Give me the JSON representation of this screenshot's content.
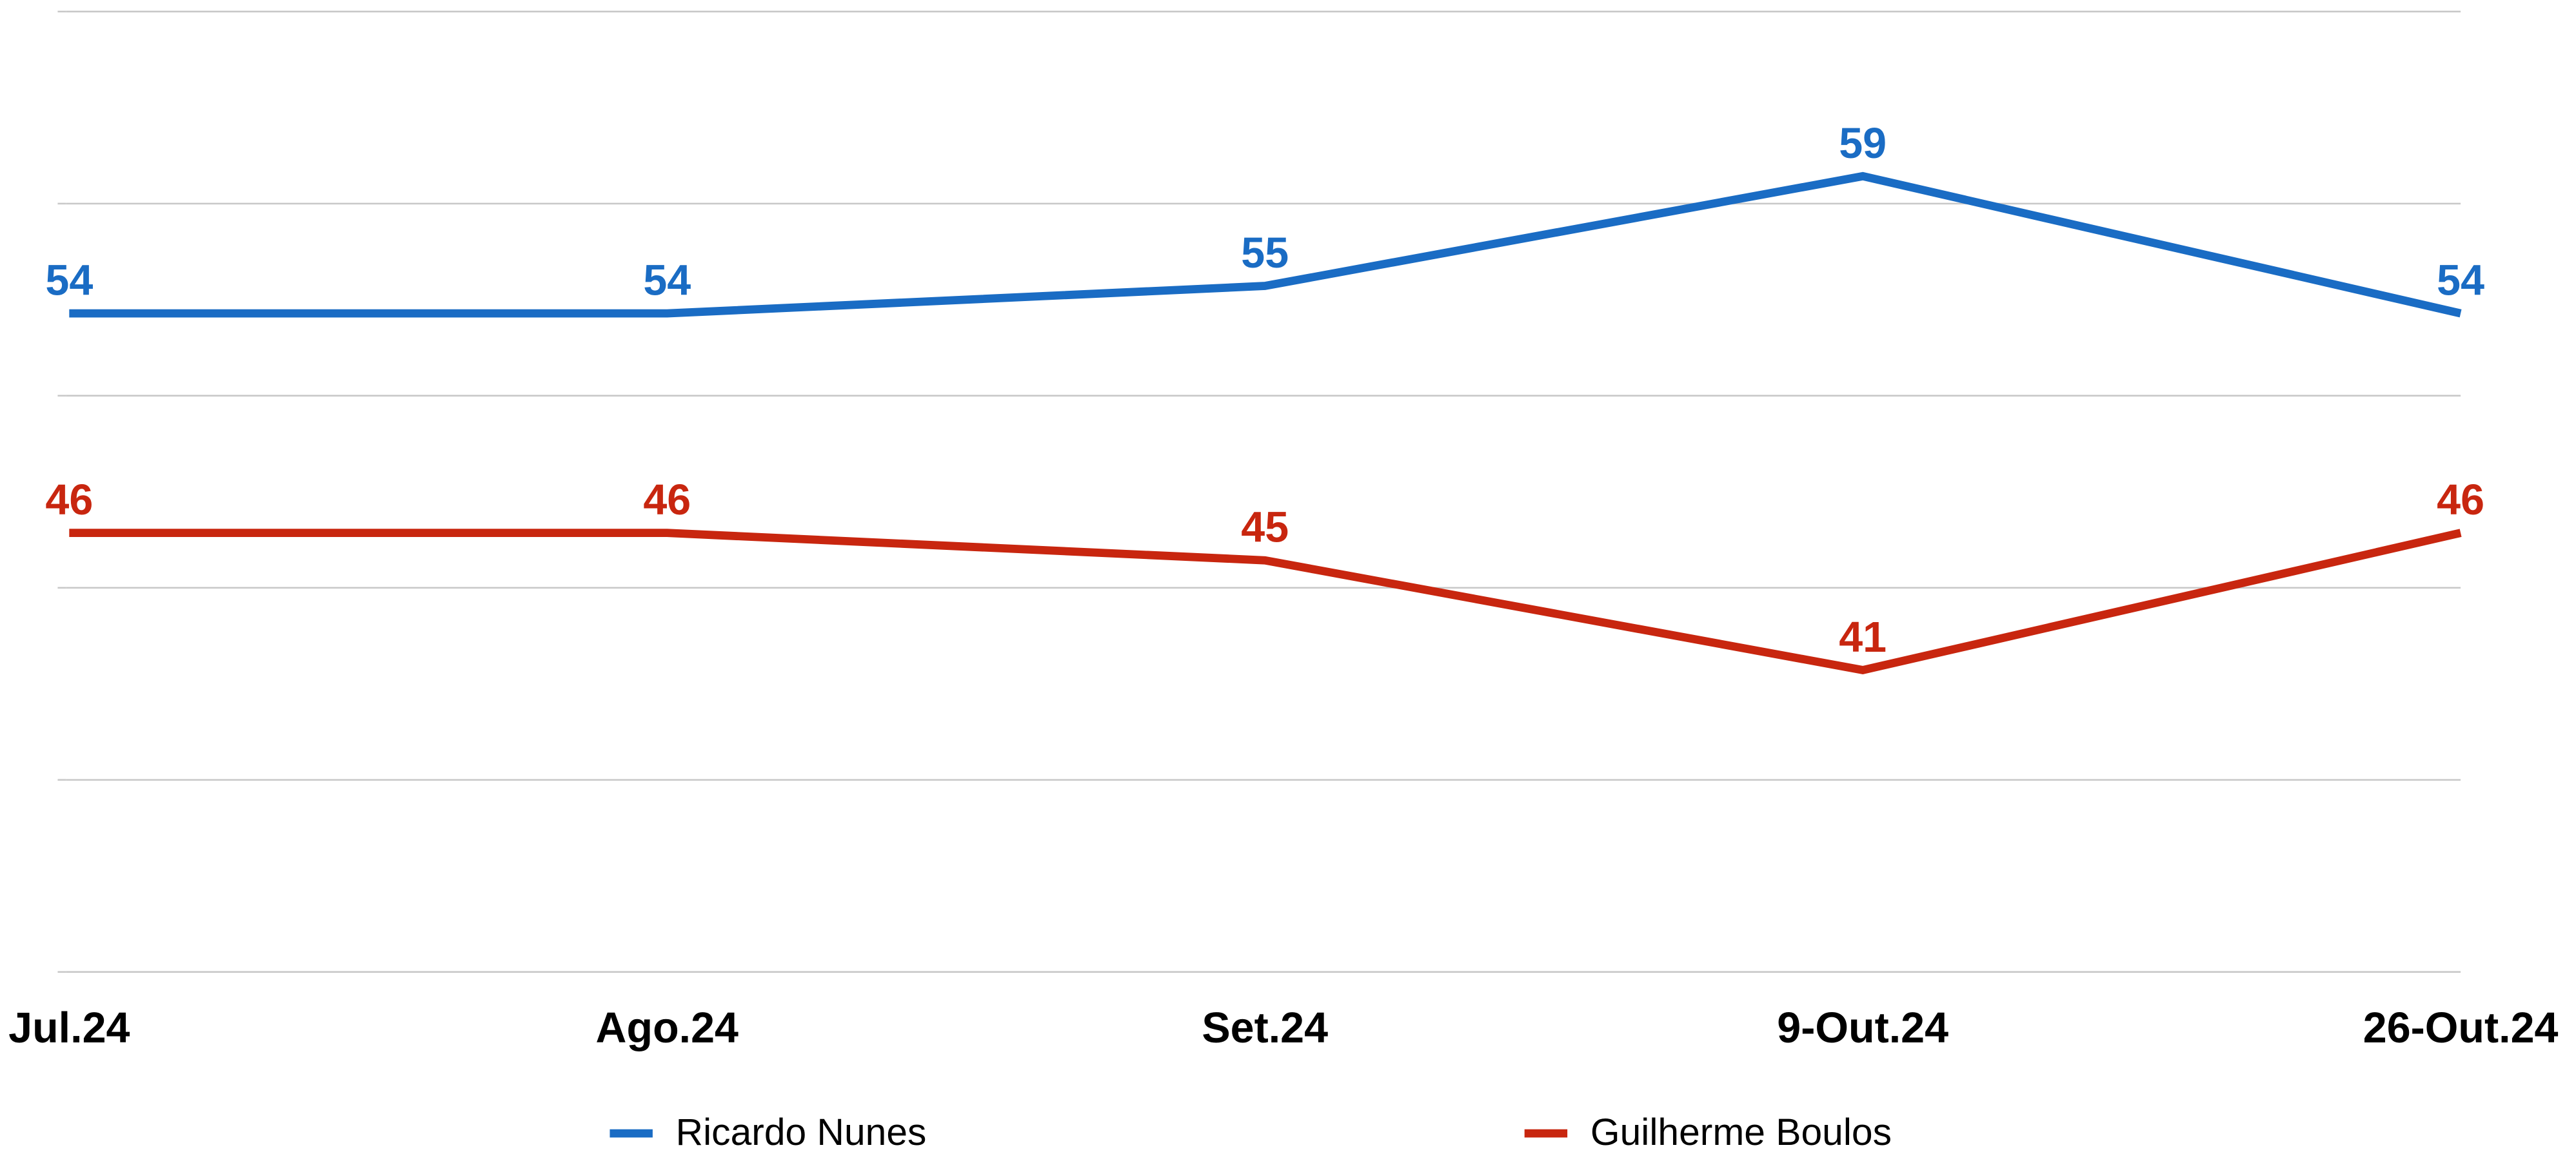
{
  "chart_data": {
    "type": "line",
    "categories": [
      "Jul.24",
      "Ago.24",
      "Set.24",
      "9-Out.24",
      "26-Out.24"
    ],
    "series": [
      {
        "name": "Ricardo Nunes",
        "color": "#1a6cc4",
        "values": [
          54,
          54,
          55,
          59,
          54
        ]
      },
      {
        "name": "Guilherme Boulos",
        "color": "#c8260f",
        "values": [
          46,
          46,
          45,
          41,
          46
        ]
      }
    ],
    "ylim": [
      30,
      65
    ],
    "yticks": [
      30,
      37,
      44,
      51,
      58,
      65
    ],
    "grid": true,
    "legend": "bottom"
  }
}
